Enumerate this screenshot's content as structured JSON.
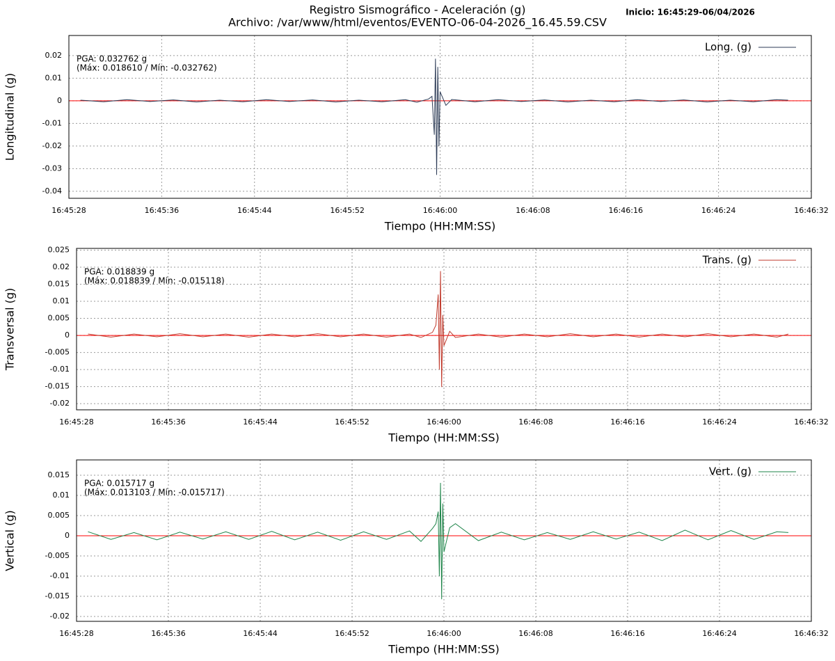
{
  "title": "Registro Sismográfico - Aceleración (g)",
  "subtitle": "Archivo: /var/www/html/eventos/EVENTO-06-04-2026_16.45.59.CSV",
  "start_label": "Inicio: 16:45:29-06/04/2026",
  "chart_data": [
    {
      "type": "line",
      "xlabel": "Tiempo (HH:MM:SS)",
      "ylabel": "Longitudinal (g)",
      "x": [
        "16:45:29",
        "16:45:31",
        "16:45:33",
        "16:45:35",
        "16:45:37",
        "16:45:39",
        "16:45:41",
        "16:45:43",
        "16:45:45",
        "16:45:47",
        "16:45:49",
        "16:45:51",
        "16:45:53",
        "16:45:55",
        "16:45:57",
        "16:45:58",
        "16:45:59",
        "16:45:59.3",
        "16:45:59.5",
        "16:45:59.6",
        "16:45:59.7",
        "16:45:59.8",
        "16:45:59.9",
        "16:46:00",
        "16:46:00.5",
        "16:46:01",
        "16:46:03",
        "16:46:05",
        "16:46:07",
        "16:46:09",
        "16:46:11",
        "16:46:13",
        "16:46:15",
        "16:46:17",
        "16:46:19",
        "16:46:21",
        "16:46:23",
        "16:46:25",
        "16:46:27",
        "16:46:29",
        "16:46:30"
      ],
      "series": [
        {
          "name": "Long. (g)",
          "color": "#2b3a55",
          "values": [
            0.0003,
            -0.0004,
            0.0005,
            -0.0003,
            0.0004,
            -0.0005,
            0.0003,
            -0.0004,
            0.0005,
            -0.0003,
            0.0004,
            -0.0005,
            0.0003,
            -0.0004,
            0.0005,
            -0.0006,
            0.0008,
            0.002,
            -0.015,
            0.01861,
            -0.032762,
            0.015,
            -0.02,
            0.004,
            -0.002,
            0.0006,
            -0.0004,
            0.0005,
            -0.0003,
            0.0004,
            -0.0005,
            0.0003,
            -0.0004,
            0.0005,
            -0.0003,
            0.0004,
            -0.0005,
            0.0003,
            -0.0004,
            0.0005,
            0.0003
          ]
        }
      ],
      "annotations": [
        "PGA: 0.032762 g",
        "(Máx: 0.018610 / Mín: -0.032762)"
      ],
      "annotation_color": "#0000ff",
      "xlim": [
        "16:45:28",
        "16:46:32"
      ],
      "xticks": [
        "16:45:28",
        "16:45:36",
        "16:45:44",
        "16:45:52",
        "16:46:00",
        "16:46:08",
        "16:46:16",
        "16:46:24",
        "16:46:32"
      ],
      "ylim": [
        -0.0431,
        0.0289
      ],
      "yticks": [
        -0.04,
        -0.03,
        -0.02,
        -0.01,
        0,
        0.01,
        0.02
      ],
      "grid": true,
      "zero_line_color": "#ff0000",
      "legend": "top-right"
    },
    {
      "type": "line",
      "xlabel": "Tiempo (HH:MM:SS)",
      "ylabel": "Transversal (g)",
      "x": [
        "16:45:29",
        "16:45:31",
        "16:45:33",
        "16:45:35",
        "16:45:37",
        "16:45:39",
        "16:45:41",
        "16:45:43",
        "16:45:45",
        "16:45:47",
        "16:45:49",
        "16:45:51",
        "16:45:53",
        "16:45:55",
        "16:45:57",
        "16:45:58",
        "16:45:59",
        "16:45:59.3",
        "16:45:59.5",
        "16:45:59.6",
        "16:45:59.7",
        "16:45:59.8",
        "16:45:59.9",
        "16:46:00",
        "16:46:00.5",
        "16:46:01",
        "16:46:03",
        "16:46:05",
        "16:46:07",
        "16:46:09",
        "16:46:11",
        "16:46:13",
        "16:46:15",
        "16:46:17",
        "16:46:19",
        "16:46:21",
        "16:46:23",
        "16:46:25",
        "16:46:27",
        "16:46:29",
        "16:46:30"
      ],
      "series": [
        {
          "name": "Trans. (g)",
          "color": "#c0392b",
          "values": [
            0.0004,
            -0.0005,
            0.0004,
            -0.0004,
            0.0005,
            -0.0004,
            0.0004,
            -0.0005,
            0.0004,
            -0.0004,
            0.0005,
            -0.0004,
            0.0004,
            -0.0005,
            0.0004,
            -0.0006,
            0.0009,
            0.003,
            0.012,
            -0.01,
            0.018839,
            -0.015118,
            0.006,
            -0.003,
            0.0012,
            -0.0006,
            0.0004,
            -0.0005,
            0.0004,
            -0.0004,
            0.0005,
            -0.0004,
            0.0004,
            -0.0005,
            0.0004,
            -0.0004,
            0.0005,
            -0.0004,
            0.0004,
            -0.0005,
            0.0004
          ]
        }
      ],
      "annotations": [
        "PGA: 0.018839 g",
        "(Máx: 0.018839 / Mín: -0.015118)"
      ],
      "annotation_color": "#ff0000",
      "xlim": [
        "16:45:28",
        "16:46:32"
      ],
      "xticks": [
        "16:45:28",
        "16:45:36",
        "16:45:44",
        "16:45:52",
        "16:46:00",
        "16:46:08",
        "16:46:16",
        "16:46:24",
        "16:46:32"
      ],
      "ylim": [
        -0.0218,
        0.0255
      ],
      "yticks": [
        -0.02,
        -0.015,
        -0.01,
        -0.005,
        0,
        0.005,
        0.01,
        0.015,
        0.02,
        0.025
      ],
      "grid": true,
      "zero_line_color": "#ff0000",
      "legend": "top-right"
    },
    {
      "type": "line",
      "xlabel": "Tiempo (HH:MM:SS)",
      "ylabel": "Vertical (g)",
      "x": [
        "16:45:29",
        "16:45:31",
        "16:45:33",
        "16:45:35",
        "16:45:37",
        "16:45:39",
        "16:45:41",
        "16:45:43",
        "16:45:45",
        "16:45:47",
        "16:45:49",
        "16:45:51",
        "16:45:53",
        "16:45:55",
        "16:45:57",
        "16:45:58",
        "16:45:59",
        "16:45:59.3",
        "16:45:59.5",
        "16:45:59.6",
        "16:45:59.7",
        "16:45:59.8",
        "16:45:59.9",
        "16:46:00",
        "16:46:00.5",
        "16:46:01",
        "16:46:03",
        "16:46:05",
        "16:46:07",
        "16:46:09",
        "16:46:11",
        "16:46:13",
        "16:46:15",
        "16:46:17",
        "16:46:19",
        "16:46:21",
        "16:46:23",
        "16:46:25",
        "16:46:27",
        "16:46:29",
        "16:46:30"
      ],
      "series": [
        {
          "name": "Vert. (g)",
          "color": "#1e8449",
          "values": [
            0.001,
            -0.0009,
            0.0008,
            -0.001,
            0.0009,
            -0.0008,
            0.001,
            -0.0009,
            0.0011,
            -0.001,
            0.0009,
            -0.0011,
            0.001,
            -0.0009,
            0.0012,
            -0.0014,
            0.0018,
            0.003,
            0.006,
            -0.01,
            0.013103,
            -0.015717,
            0.008,
            -0.004,
            0.002,
            0.003,
            -0.0012,
            0.0009,
            -0.001,
            0.0008,
            -0.0009,
            0.001,
            -0.0008,
            0.0009,
            -0.0012,
            0.0014,
            -0.001,
            0.0013,
            -0.0009,
            0.001,
            0.0008
          ]
        }
      ],
      "annotations": [
        "PGA: 0.015717 g",
        "(Máx: 0.013103 / Mín: -0.015717)"
      ],
      "annotation_color": "#006400",
      "xlim": [
        "16:45:28",
        "16:46:32"
      ],
      "xticks": [
        "16:45:28",
        "16:45:36",
        "16:45:44",
        "16:45:52",
        "16:46:00",
        "16:46:08",
        "16:46:16",
        "16:46:24",
        "16:46:32"
      ],
      "ylim": [
        -0.0212,
        0.0188
      ],
      "yticks": [
        -0.02,
        -0.015,
        -0.01,
        -0.005,
        0,
        0.005,
        0.01,
        0.015
      ],
      "grid": true,
      "zero_line_color": "#ff0000",
      "legend": "top-right"
    }
  ]
}
